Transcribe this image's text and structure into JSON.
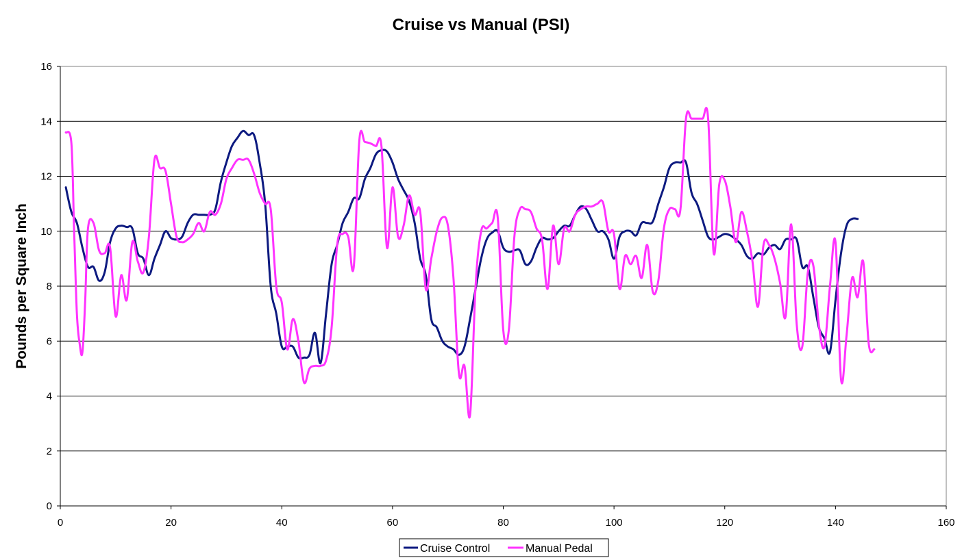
{
  "chart_data": {
    "type": "line",
    "title": "Cruise vs Manual (PSI)",
    "xlabel": "",
    "ylabel": "Pounds per Square Inch",
    "xlim": [
      0,
      160
    ],
    "ylim": [
      0,
      16
    ],
    "x_ticks": [
      0,
      20,
      40,
      60,
      80,
      100,
      120,
      140,
      160
    ],
    "y_ticks": [
      0,
      2,
      4,
      6,
      8,
      10,
      12,
      14,
      16
    ],
    "grid": "horizontal major gridlines",
    "legend_position": "bottom-center",
    "series": [
      {
        "name": "Cruise Control",
        "color": "#0d1a80",
        "x": [
          1,
          2,
          3,
          4,
          5,
          6,
          7,
          8,
          9,
          10,
          11,
          12,
          13,
          14,
          15,
          16,
          17,
          18,
          19,
          20,
          21,
          22,
          23,
          24,
          25,
          26,
          27,
          28,
          29,
          30,
          31,
          32,
          33,
          34,
          35,
          36,
          37,
          38,
          39,
          40,
          41,
          42,
          43,
          44,
          45,
          46,
          47,
          48,
          49,
          50,
          51,
          52,
          53,
          54,
          55,
          56,
          57,
          58,
          59,
          60,
          61,
          62,
          63,
          64,
          65,
          66,
          67,
          68,
          69,
          70,
          71,
          72,
          73,
          74,
          75,
          76,
          77,
          78,
          79,
          80,
          81,
          82,
          83,
          84,
          85,
          86,
          87,
          88,
          89,
          90,
          91,
          92,
          93,
          94,
          95,
          96,
          97,
          98,
          99,
          100,
          101,
          102,
          103,
          104,
          105,
          106,
          107,
          108,
          109,
          110,
          111,
          112,
          113,
          114,
          115,
          116,
          117,
          118,
          119,
          120,
          121,
          122,
          123,
          124,
          125,
          126,
          127,
          128,
          129,
          130,
          131,
          132,
          133,
          134,
          135,
          136,
          137,
          138,
          139,
          140,
          141,
          142,
          143,
          144
        ],
        "values": [
          11.6,
          10.7,
          10.3,
          9.4,
          8.7,
          8.7,
          8.2,
          8.5,
          9.6,
          10.1,
          10.2,
          10.15,
          10.1,
          9.2,
          9.0,
          8.4,
          9.0,
          9.5,
          10.0,
          9.75,
          9.7,
          9.8,
          10.3,
          10.6,
          10.6,
          10.6,
          10.6,
          10.8,
          11.8,
          12.5,
          13.1,
          13.4,
          13.65,
          13.5,
          13.5,
          12.5,
          11.0,
          8.0,
          7.0,
          5.8,
          5.8,
          5.8,
          5.4,
          5.4,
          5.5,
          6.3,
          5.2,
          7.0,
          8.8,
          9.5,
          10.3,
          10.7,
          11.2,
          11.2,
          11.9,
          12.3,
          12.8,
          12.95,
          12.9,
          12.5,
          11.9,
          11.5,
          11.1,
          10.3,
          9.0,
          8.4,
          6.8,
          6.5,
          6.0,
          5.8,
          5.7,
          5.5,
          5.8,
          6.8,
          7.9,
          9.0,
          9.7,
          9.95,
          10.0,
          9.4,
          9.25,
          9.3,
          9.3,
          8.8,
          8.9,
          9.4,
          9.75,
          9.7,
          9.75,
          10.0,
          10.2,
          10.2,
          10.6,
          10.9,
          10.8,
          10.4,
          10.0,
          10.0,
          9.7,
          9.0,
          9.8,
          10.0,
          10.0,
          9.85,
          10.3,
          10.3,
          10.35,
          11.0,
          11.6,
          12.3,
          12.5,
          12.5,
          12.5,
          11.4,
          11.0,
          10.4,
          9.8,
          9.7,
          9.8,
          9.9,
          9.85,
          9.7,
          9.5,
          9.1,
          9.0,
          9.2,
          9.15,
          9.4,
          9.5,
          9.35,
          9.7,
          9.7,
          9.7,
          8.7,
          8.7,
          7.6,
          6.5,
          6.1,
          5.6,
          7.5,
          9.2,
          10.2,
          10.45,
          10.45
        ]
      },
      {
        "name": "Manual Pedal",
        "color": "#ff33ff",
        "x": [
          1,
          2,
          2.5,
          3,
          3.5,
          4,
          4.5,
          5,
          6,
          7,
          8,
          9,
          10,
          11,
          12,
          13,
          14,
          15,
          16,
          17,
          18,
          19,
          20,
          21,
          22,
          23,
          24,
          25,
          26,
          27,
          28,
          29,
          30,
          31,
          32,
          33,
          34,
          35,
          36,
          37,
          38,
          39,
          40,
          41,
          42,
          43,
          44,
          45,
          46,
          47,
          48,
          49,
          50,
          51,
          52,
          53,
          54,
          55,
          56,
          57,
          58,
          59,
          60,
          61,
          62,
          63,
          64,
          65,
          66,
          67,
          68,
          69,
          70,
          71,
          72,
          73,
          74,
          75,
          76,
          77,
          78,
          79,
          80,
          81,
          82,
          83,
          84,
          85,
          86,
          87,
          88,
          89,
          90,
          91,
          92,
          93,
          94,
          95,
          96,
          97,
          98,
          99,
          100,
          101,
          102,
          103,
          104,
          105,
          106,
          107,
          108,
          109,
          110,
          111,
          112,
          113,
          114,
          115,
          116,
          117,
          118,
          119,
          120,
          121,
          122,
          123,
          124,
          125,
          126,
          127,
          128,
          129,
          130,
          131,
          132,
          133,
          134,
          135,
          136,
          137,
          138,
          139,
          140,
          141,
          142,
          143,
          144,
          145,
          146,
          147
        ],
        "values": [
          13.6,
          13.2,
          10.0,
          7.0,
          5.9,
          5.6,
          7.5,
          10.1,
          10.3,
          9.3,
          9.2,
          9.4,
          6.9,
          8.4,
          7.5,
          9.6,
          8.9,
          8.5,
          9.8,
          12.6,
          12.3,
          12.2,
          11.0,
          9.8,
          9.6,
          9.7,
          9.9,
          10.3,
          10.0,
          10.7,
          10.6,
          11.0,
          11.9,
          12.3,
          12.6,
          12.6,
          12.6,
          12.1,
          11.4,
          11.0,
          10.8,
          8.0,
          7.4,
          5.7,
          6.8,
          6.0,
          4.5,
          5.0,
          5.1,
          5.1,
          5.3,
          6.5,
          9.5,
          9.9,
          9.8,
          8.7,
          13.3,
          13.25,
          13.2,
          13.1,
          13.1,
          9.4,
          11.6,
          9.8,
          10.2,
          11.3,
          10.6,
          10.7,
          7.9,
          9.0,
          10.0,
          10.5,
          10.2,
          8.3,
          4.8,
          5.1,
          3.3,
          8.0,
          10.0,
          10.1,
          10.3,
          10.5,
          6.4,
          6.4,
          9.8,
          10.8,
          10.8,
          10.7,
          10.1,
          9.7,
          7.9,
          10.2,
          8.8,
          10.1,
          10.0,
          10.6,
          10.8,
          10.9,
          10.9,
          11.0,
          11.05,
          10.0,
          9.9,
          7.9,
          9.1,
          8.8,
          9.1,
          8.3,
          9.5,
          7.8,
          8.2,
          10.1,
          10.8,
          10.8,
          10.8,
          14.1,
          14.1,
          14.1,
          14.1,
          14.1,
          9.2,
          11.7,
          11.85,
          10.9,
          9.6,
          10.7,
          10.0,
          8.9,
          7.25,
          9.5,
          9.5,
          9.0,
          8.1,
          6.9,
          10.25,
          6.6,
          5.8,
          8.5,
          8.75,
          6.6,
          5.8,
          8.0,
          9.6,
          4.6,
          6.2,
          8.3,
          7.6,
          8.9,
          5.9,
          5.7
        ]
      }
    ]
  }
}
